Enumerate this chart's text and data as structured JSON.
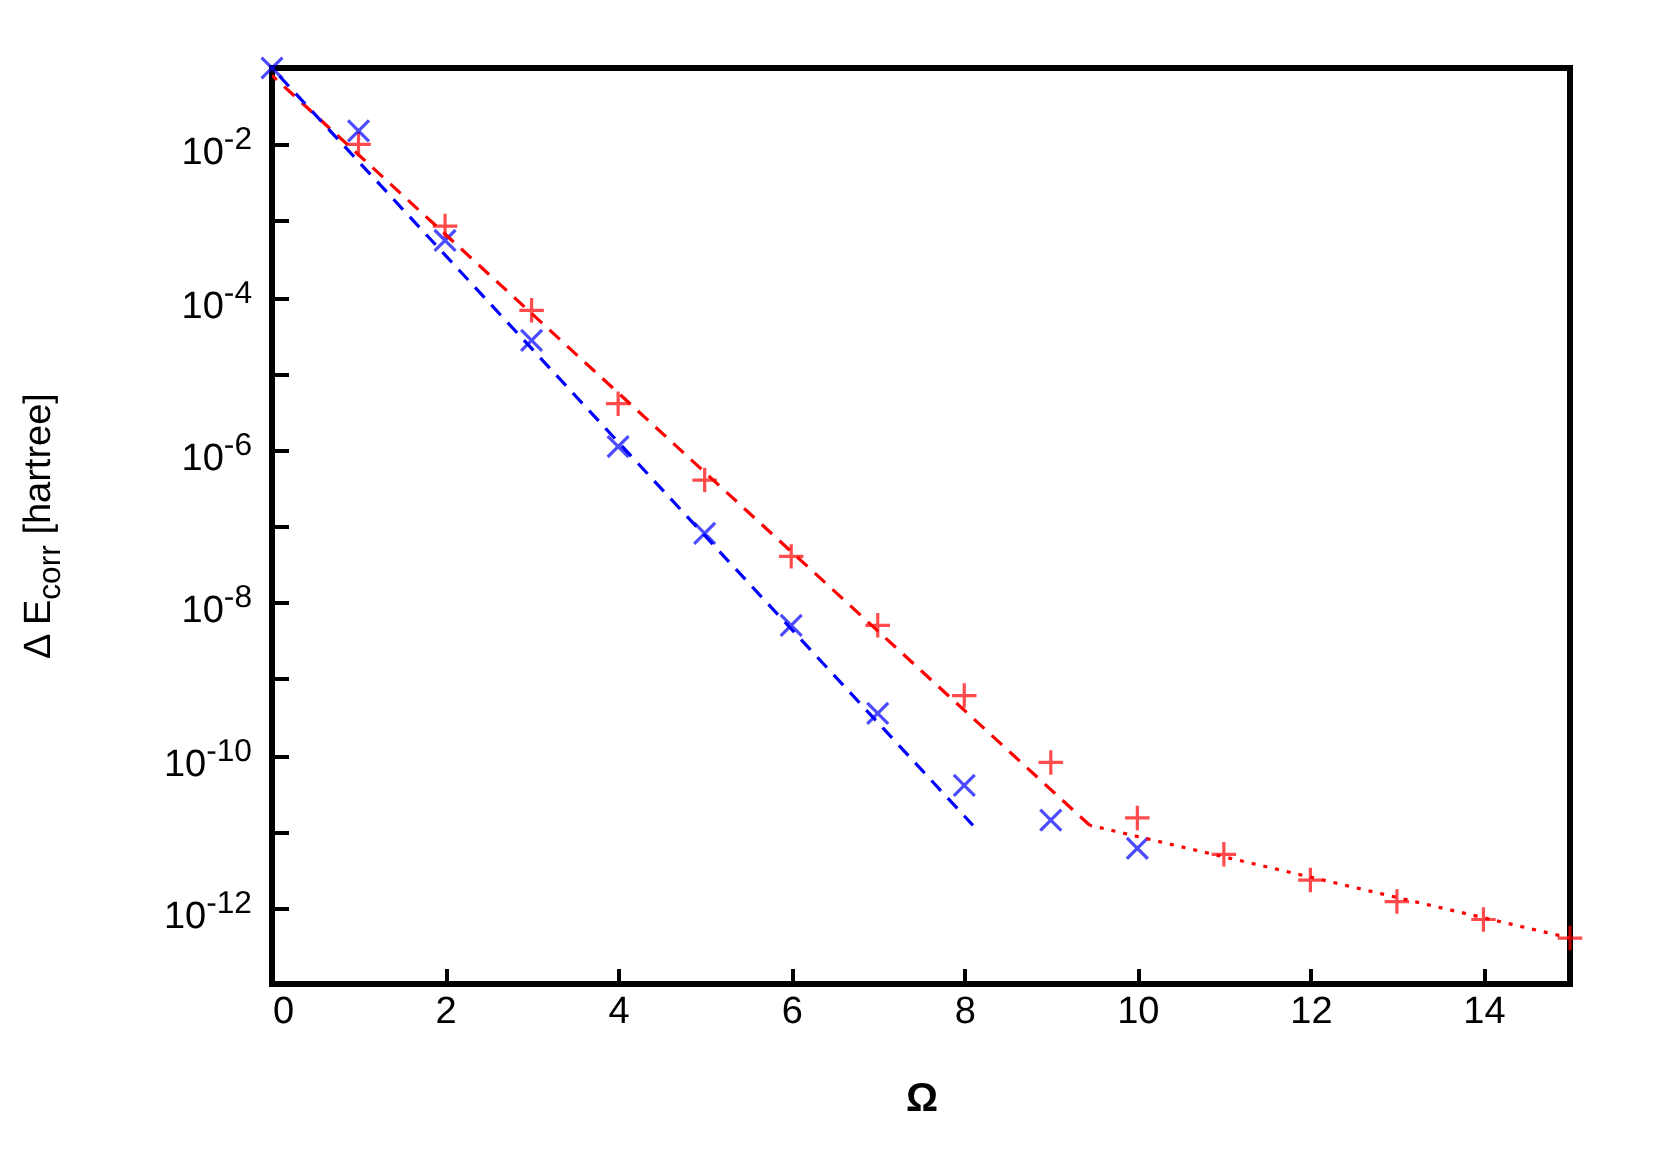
{
  "chart_data": {
    "type": "scatter",
    "xlabel": "Ω",
    "ylabel": "Δ E$_{corr}$ [hartree]",
    "log": "y",
    "xlim": [
      0,
      15
    ],
    "xticks": [
      0,
      2,
      4,
      6,
      8,
      10,
      12,
      14
    ],
    "ylim": [
      1e-13,
      0.1
    ],
    "yticks": [
      {
        "value": 0.01,
        "label": "10$^{-2}$"
      },
      {
        "value": 0.001,
        "label": null
      },
      {
        "value": 0.0001,
        "label": "10$^{-4}$"
      },
      {
        "value": 1e-05,
        "label": null
      },
      {
        "value": 1e-06,
        "label": "10$^{-6}$"
      },
      {
        "value": 1e-07,
        "label": null
      },
      {
        "value": 1e-08,
        "label": "10$^{-8}$"
      },
      {
        "value": 1e-09,
        "label": null
      },
      {
        "value": 1e-10,
        "label": "10$^{-10}$"
      },
      {
        "value": 1e-11,
        "label": null
      },
      {
        "value": 1e-12,
        "label": "10$^{-12}$"
      }
    ],
    "grid": false,
    "series": [
      {
        "type": "scatter",
        "marker": "cross",
        "color": "#ff0000",
        "x": [
          1,
          2,
          3,
          4,
          5,
          6,
          7,
          8,
          9,
          10,
          11,
          12,
          13,
          14,
          15
        ],
        "values": [
          0.01,
          0.00085,
          6.7e-05,
          4e-06,
          4e-07,
          4e-08,
          5e-09,
          6e-10,
          8e-11,
          1.5e-11,
          5e-12,
          2.3e-12,
          1.2e-12,
          7e-13,
          4e-13
        ]
      },
      {
        "type": "scatter",
        "marker": "x",
        "color": "#0000ff",
        "x": [
          0,
          1,
          2,
          3,
          4,
          5,
          6,
          7,
          8,
          9,
          10
        ],
        "values": [
          0.1,
          0.015,
          0.00055,
          2.7e-05,
          1.1e-06,
          8e-08,
          5e-09,
          3.5e-10,
          4e-11,
          1.4e-11,
          6e-12
        ]
      },
      {
        "type": "line",
        "line_style": "dashed",
        "color": "#ff0000",
        "x": [
          0,
          9.45
        ],
        "values": [
          0.08,
          1.2e-11
        ]
      },
      {
        "type": "line",
        "line_style": "dotted",
        "color": "#ff0000",
        "x": [
          9.45,
          15
        ],
        "values": [
          1.2e-11,
          4e-13
        ]
      },
      {
        "type": "line",
        "line_style": "dashed",
        "color": "#0000ff",
        "x": [
          0,
          8.1
        ],
        "values": [
          0.1,
          1.2e-11
        ]
      }
    ]
  }
}
